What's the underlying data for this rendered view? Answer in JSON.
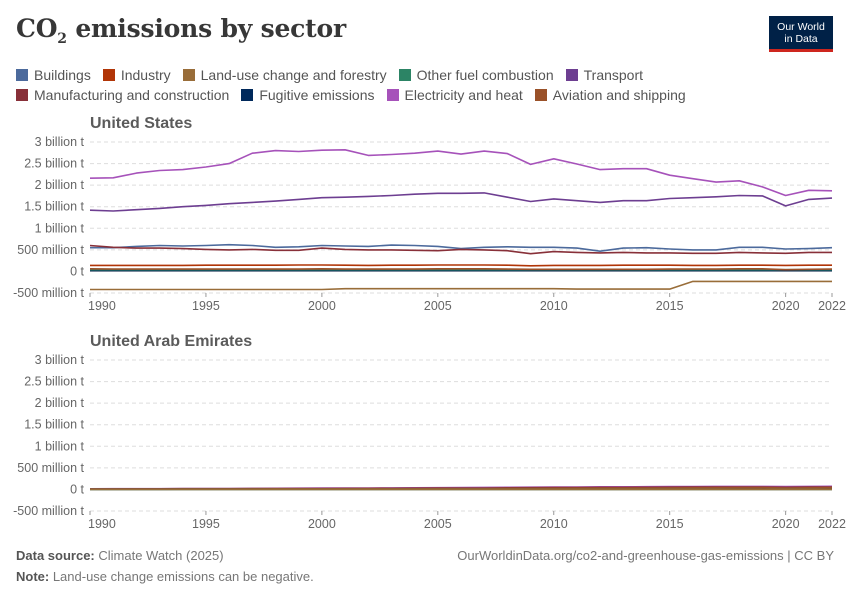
{
  "header": {
    "title_main": "CO",
    "title_sub": "2",
    "title_rest": " emissions by sector",
    "logo_line1": "Our World",
    "logo_line2": "in Data"
  },
  "legend": [
    {
      "name": "Buildings",
      "color": "#4c6a9c"
    },
    {
      "name": "Industry",
      "color": "#b13507"
    },
    {
      "name": "Land-use change and forestry",
      "color": "#996d39"
    },
    {
      "name": "Other fuel combustion",
      "color": "#2c8465"
    },
    {
      "name": "Transport",
      "color": "#6d3e91"
    },
    {
      "name": "Manufacturing and construction",
      "color": "#883039"
    },
    {
      "name": "Fugitive emissions",
      "color": "#00295b"
    },
    {
      "name": "Electricity and heat",
      "color": "#a652ba"
    },
    {
      "name": "Aviation and shipping",
      "color": "#9a5129"
    }
  ],
  "footer": {
    "source_label": "Data source:",
    "source_text": " Climate Watch (2025)",
    "url_text": "OurWorldinData.org/co2-and-greenhouse-gas-emissions | CC BY",
    "note_label": "Note:",
    "note_text": " Land-use change emissions can be negative."
  },
  "chart_data": [
    {
      "type": "line",
      "title": "United States",
      "ylim": [
        -500000000,
        3000000000
      ],
      "yticks": [
        -500000000,
        0,
        500000000,
        1000000000,
        1500000000,
        2000000000,
        2500000000,
        3000000000
      ],
      "ytick_labels": [
        "-500 million t",
        "0 t",
        "500 million t",
        "1 billion t",
        "1.5 billion t",
        "2 billion t",
        "2.5 billion t",
        "3 billion t"
      ],
      "xticks": [
        1990,
        1995,
        2000,
        2005,
        2010,
        2015,
        2020,
        2022
      ],
      "x": [
        1990,
        1991,
        1992,
        1993,
        1994,
        1995,
        1996,
        1997,
        1998,
        1999,
        2000,
        2001,
        2002,
        2003,
        2004,
        2005,
        2006,
        2007,
        2008,
        2009,
        2010,
        2011,
        2012,
        2013,
        2014,
        2015,
        2016,
        2017,
        2018,
        2019,
        2020,
        2021,
        2022
      ],
      "series": [
        {
          "name": "Electricity and heat",
          "color": "#a652ba",
          "values": [
            2160,
            2170,
            2280,
            2340,
            2360,
            2420,
            2500,
            2740,
            2800,
            2780,
            2810,
            2820,
            2690,
            2710,
            2740,
            2790,
            2720,
            2790,
            2730,
            2480,
            2610,
            2490,
            2360,
            2380,
            2380,
            2230,
            2150,
            2070,
            2100,
            1960,
            1760,
            1880,
            1870
          ]
        },
        {
          "name": "Transport",
          "color": "#6d3e91",
          "values": [
            1420,
            1400,
            1430,
            1460,
            1500,
            1530,
            1570,
            1600,
            1630,
            1670,
            1710,
            1720,
            1740,
            1760,
            1790,
            1810,
            1810,
            1820,
            1720,
            1620,
            1680,
            1640,
            1600,
            1640,
            1640,
            1690,
            1710,
            1730,
            1760,
            1750,
            1520,
            1670,
            1700
          ]
        },
        {
          "name": "Buildings",
          "color": "#4c6a9c",
          "values": [
            550,
            550,
            580,
            600,
            590,
            600,
            620,
            600,
            560,
            570,
            600,
            590,
            580,
            610,
            600,
            580,
            530,
            560,
            570,
            560,
            560,
            540,
            470,
            540,
            550,
            520,
            500,
            500,
            560,
            560,
            520,
            530,
            550
          ]
        },
        {
          "name": "Manufacturing and construction",
          "color": "#883039",
          "values": [
            600,
            560,
            540,
            540,
            530,
            510,
            500,
            510,
            490,
            490,
            540,
            510,
            500,
            500,
            490,
            480,
            510,
            500,
            480,
            410,
            460,
            440,
            430,
            440,
            430,
            430,
            420,
            420,
            440,
            430,
            420,
            440,
            440
          ]
        },
        {
          "name": "Industry",
          "color": "#b13507",
          "values": [
            140,
            140,
            140,
            140,
            140,
            145,
            145,
            145,
            145,
            150,
            150,
            145,
            140,
            145,
            145,
            150,
            150,
            150,
            145,
            130,
            140,
            140,
            140,
            145,
            145,
            145,
            140,
            140,
            145,
            145,
            140,
            145,
            145
          ]
        },
        {
          "name": "Fugitive emissions",
          "color": "#00295b",
          "values": [
            20,
            20,
            20,
            20,
            20,
            20,
            20,
            20,
            20,
            20,
            20,
            20,
            20,
            20,
            20,
            20,
            20,
            20,
            20,
            20,
            20,
            20,
            20,
            20,
            20,
            20,
            20,
            20,
            20,
            20,
            20,
            20,
            20
          ]
        },
        {
          "name": "Other fuel combustion",
          "color": "#2c8465",
          "values": [
            40,
            40,
            40,
            40,
            40,
            40,
            40,
            40,
            40,
            40,
            40,
            40,
            40,
            40,
            40,
            40,
            40,
            40,
            40,
            40,
            40,
            40,
            40,
            40,
            40,
            40,
            40,
            40,
            40,
            40,
            40,
            40,
            40
          ]
        },
        {
          "name": "Aviation and shipping",
          "color": "#9a5129",
          "values": [
            60,
            55,
            55,
            55,
            55,
            55,
            55,
            55,
            55,
            55,
            60,
            55,
            55,
            55,
            55,
            60,
            60,
            60,
            55,
            50,
            50,
            50,
            50,
            50,
            50,
            55,
            55,
            55,
            60,
            60,
            40,
            50,
            55
          ]
        },
        {
          "name": "Land-use change and forestry",
          "color": "#996d39",
          "values": [
            -420,
            -420,
            -420,
            -420,
            -420,
            -420,
            -420,
            -420,
            -420,
            -420,
            -420,
            -400,
            -400,
            -400,
            -400,
            -400,
            -400,
            -400,
            -400,
            -400,
            -400,
            -410,
            -410,
            -410,
            -410,
            -410,
            -230,
            -230,
            -230,
            -230,
            -230,
            -230,
            -230
          ]
        }
      ]
    },
    {
      "type": "line",
      "title": "United Arab Emirates",
      "ylim": [
        -500000000,
        3000000000
      ],
      "yticks": [
        -500000000,
        0,
        500000000,
        1000000000,
        1500000000,
        2000000000,
        2500000000,
        3000000000
      ],
      "ytick_labels": [
        "-500 million t",
        "0 t",
        "500 million t",
        "1 billion t",
        "1.5 billion t",
        "2 billion t",
        "2.5 billion t",
        "3 billion t"
      ],
      "xticks": [
        1990,
        1995,
        2000,
        2005,
        2010,
        2015,
        2020,
        2022
      ],
      "x": [
        1990,
        1991,
        1992,
        1993,
        1994,
        1995,
        1996,
        1997,
        1998,
        1999,
        2000,
        2001,
        2002,
        2003,
        2004,
        2005,
        2006,
        2007,
        2008,
        2009,
        2010,
        2011,
        2012,
        2013,
        2014,
        2015,
        2016,
        2017,
        2018,
        2019,
        2020,
        2021,
        2022
      ],
      "series": [
        {
          "name": "Electricity and heat",
          "color": "#a652ba",
          "values": [
            15,
            16,
            17,
            18,
            19,
            20,
            22,
            24,
            26,
            28,
            30,
            32,
            34,
            36,
            38,
            40,
            43,
            46,
            50,
            52,
            55,
            57,
            60,
            62,
            64,
            66,
            68,
            70,
            70,
            71,
            68,
            70,
            72
          ]
        },
        {
          "name": "Manufacturing and construction",
          "color": "#883039",
          "values": [
            12,
            13,
            14,
            15,
            16,
            17,
            18,
            19,
            20,
            21,
            22,
            23,
            24,
            26,
            28,
            30,
            32,
            34,
            37,
            39,
            42,
            44,
            46,
            48,
            50,
            52,
            54,
            54,
            55,
            55,
            50,
            54,
            56
          ]
        },
        {
          "name": "Transport",
          "color": "#6d3e91",
          "values": [
            8,
            8,
            9,
            9,
            10,
            10,
            11,
            11,
            12,
            12,
            13,
            14,
            15,
            16,
            17,
            18,
            19,
            20,
            21,
            22,
            23,
            24,
            25,
            26,
            27,
            28,
            29,
            30,
            31,
            32,
            28,
            30,
            32
          ]
        },
        {
          "name": "Industry",
          "color": "#b13507",
          "values": [
            5,
            5,
            5,
            6,
            6,
            6,
            7,
            7,
            7,
            8,
            8,
            9,
            9,
            10,
            10,
            11,
            12,
            13,
            14,
            15,
            16,
            17,
            18,
            19,
            20,
            21,
            22,
            23,
            24,
            25,
            24,
            25,
            26
          ]
        },
        {
          "name": "Fugitive emissions",
          "color": "#00295b",
          "values": [
            4,
            4,
            4,
            4,
            5,
            5,
            5,
            5,
            5,
            5,
            5,
            5,
            5,
            6,
            6,
            6,
            6,
            6,
            6,
            6,
            6,
            6,
            6,
            6,
            6,
            6,
            6,
            6,
            6,
            6,
            6,
            6,
            6
          ]
        },
        {
          "name": "Buildings",
          "color": "#4c6a9c",
          "values": [
            2,
            2,
            2,
            2,
            2,
            2,
            2,
            2,
            2,
            3,
            3,
            3,
            3,
            3,
            3,
            3,
            3,
            3,
            3,
            3,
            3,
            3,
            3,
            3,
            3,
            3,
            3,
            3,
            3,
            3,
            3,
            3,
            3
          ]
        },
        {
          "name": "Aviation and shipping",
          "color": "#9a5129",
          "values": [
            10,
            10,
            11,
            11,
            12,
            12,
            13,
            13,
            14,
            14,
            15,
            15,
            16,
            17,
            18,
            19,
            20,
            22,
            24,
            25,
            26,
            28,
            30,
            32,
            34,
            36,
            38,
            40,
            42,
            44,
            30,
            38,
            45
          ]
        },
        {
          "name": "Other fuel combustion",
          "color": "#2c8465",
          "values": [
            1,
            1,
            1,
            1,
            1,
            1,
            1,
            1,
            1,
            1,
            1,
            1,
            1,
            1,
            1,
            1,
            1,
            1,
            1,
            1,
            1,
            1,
            1,
            1,
            1,
            1,
            1,
            1,
            1,
            1,
            1,
            1,
            1
          ]
        },
        {
          "name": "Land-use change and forestry",
          "color": "#996d39",
          "values": [
            0,
            0,
            0,
            0,
            0,
            0,
            0,
            0,
            0,
            0,
            0,
            0,
            0,
            0,
            0,
            0,
            0,
            0,
            0,
            0,
            0,
            0,
            0,
            0,
            0,
            0,
            0,
            0,
            0,
            0,
            0,
            0,
            0
          ]
        }
      ],
      "value_unit": "million t"
    }
  ]
}
